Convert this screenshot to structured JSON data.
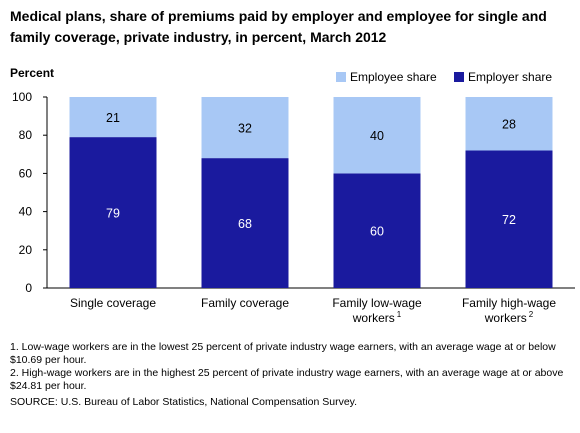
{
  "chart_data": {
    "type": "bar",
    "stacked": true,
    "title": "Medical plans, share of premiums paid by employer and employee for single and family coverage, private industry, in percent, March 2012",
    "ylabel": "Percent",
    "xlabel": "",
    "ylim": [
      0,
      100
    ],
    "yticks": [
      0,
      20,
      40,
      60,
      80,
      100
    ],
    "grid": false,
    "legend_position": "top-right",
    "categories": [
      {
        "label": "Single coverage",
        "sup": ""
      },
      {
        "label": "Family coverage",
        "sup": ""
      },
      {
        "label": "Family low-wage workers",
        "sup": "1"
      },
      {
        "label": "Family high-wage workers",
        "sup": "2"
      }
    ],
    "series": [
      {
        "name": "Employer share",
        "color": "#1a1a9e",
        "label_color": "#ffffff",
        "values": [
          79,
          68,
          60,
          72
        ]
      },
      {
        "name": "Employee share",
        "color": "#a8c8f5",
        "label_color": "#000000",
        "values": [
          21,
          32,
          40,
          28
        ]
      }
    ]
  },
  "legend": {
    "employee": "Employee share",
    "employer": "Employer share"
  },
  "footnotes": [
    "1. Low-wage workers are in the lowest 25 percent of private industry wage earners, with an average wage at or below $10.69 per hour.",
    "2. High-wage workers are in the highest 25 percent of private industry wage earners, with an average wage at or above $24.81 per hour."
  ],
  "source": "SOURCE:  U.S. Bureau of Labor Statistics, National Compensation Survey."
}
